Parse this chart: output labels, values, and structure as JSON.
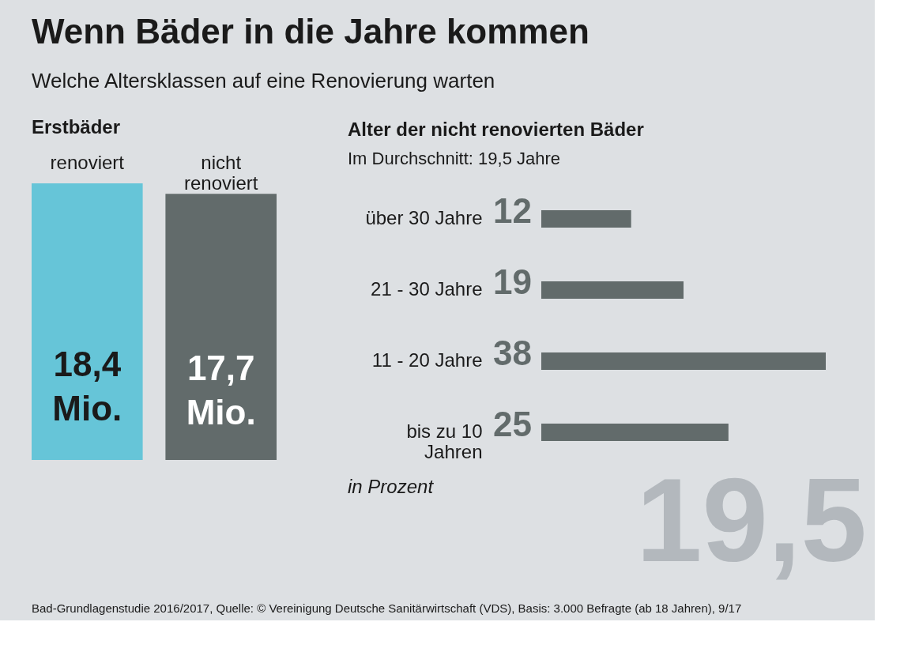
{
  "chart_data": [
    {
      "type": "other",
      "title": "Wenn Bäder in die Jahre kommen",
      "subtitle": "Welche Altersklassen auf eine Renovierung warten",
      "annotations": [
        "Bad-Grundlagenstudie 2016/2017, Quelle: © Vereinigung Deutsche Sanitärwirtschaft (VDS), Basis: 3.000 Befragte (ab 18 Jahren), 9/17"
      ]
    },
    {
      "type": "bar",
      "title": "Erstbäder",
      "categories": [
        "renoviert",
        "nicht renoviert"
      ],
      "values": [
        18.4,
        17.7
      ],
      "colors": [
        "#66c5d8",
        "#626b6b"
      ],
      "value_labels": [
        "18,4 Mio.",
        "17,7 Mio."
      ]
    },
    {
      "type": "bar",
      "orientation": "horizontal",
      "title": "Alter der nicht renovierten Bäder",
      "subtitle": "Im Durchschnitt: 19,5 Jahre",
      "categories": [
        "über 30 Jahre",
        "21 - 30 Jahre",
        "11 - 20 Jahre",
        "bis zu 10 Jahren"
      ],
      "values": [
        12,
        19,
        38,
        25
      ],
      "color": "#626b6b",
      "data_labels": true,
      "annotations": [
        "in Prozent",
        "19,5"
      ]
    }
  ]
}
